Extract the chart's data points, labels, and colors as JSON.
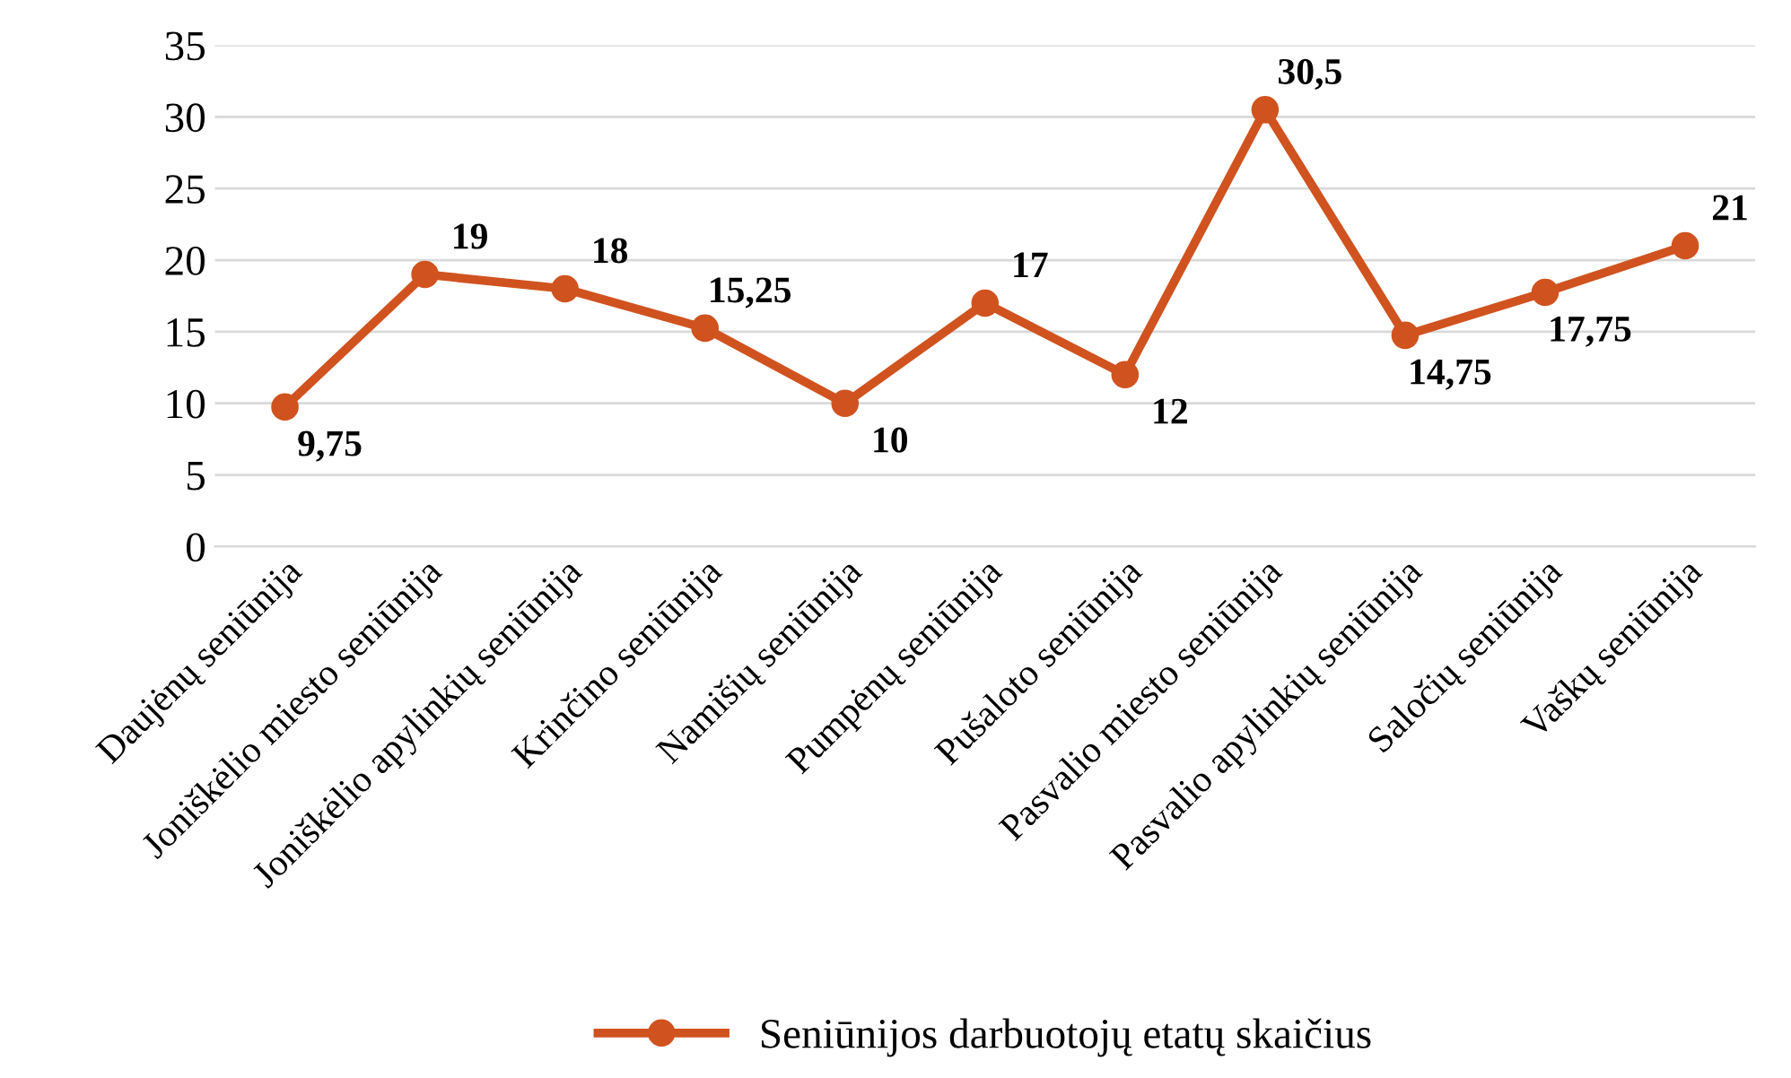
{
  "chart_data": {
    "type": "line",
    "categories": [
      "Daujėnų seniūnija",
      "Joniškėlio miesto seniūnija",
      "Joniškėlio apylinkių seniūnija",
      "Krinčino seniūnija",
      "Namišių seniūnija",
      "Pumpėnų seniūnija",
      "Pušaloto seniūnija",
      "Pasvalio miesto seniūnija",
      "Pasvalio apylinkių seniūnija",
      "Saločių seniūnija",
      "Vaškų seniūnija"
    ],
    "series": [
      {
        "name": "Seniūnijos darbuotojų etatų skaičius",
        "color": "#d0531f",
        "values": [
          9.75,
          19,
          18,
          15.25,
          10,
          17,
          12,
          30.5,
          14.75,
          17.75,
          21
        ],
        "value_labels": [
          "9,75",
          "19",
          "18",
          "15,25",
          "10",
          "17",
          "12",
          "30,5",
          "14,75",
          "17,75",
          "21"
        ]
      }
    ],
    "ylim": [
      0,
      35
    ],
    "yticks": [
      0,
      5,
      10,
      15,
      20,
      25,
      30,
      35
    ],
    "grid": "y",
    "legend": "bottom",
    "marker": "circle",
    "line_style": "solid"
  }
}
